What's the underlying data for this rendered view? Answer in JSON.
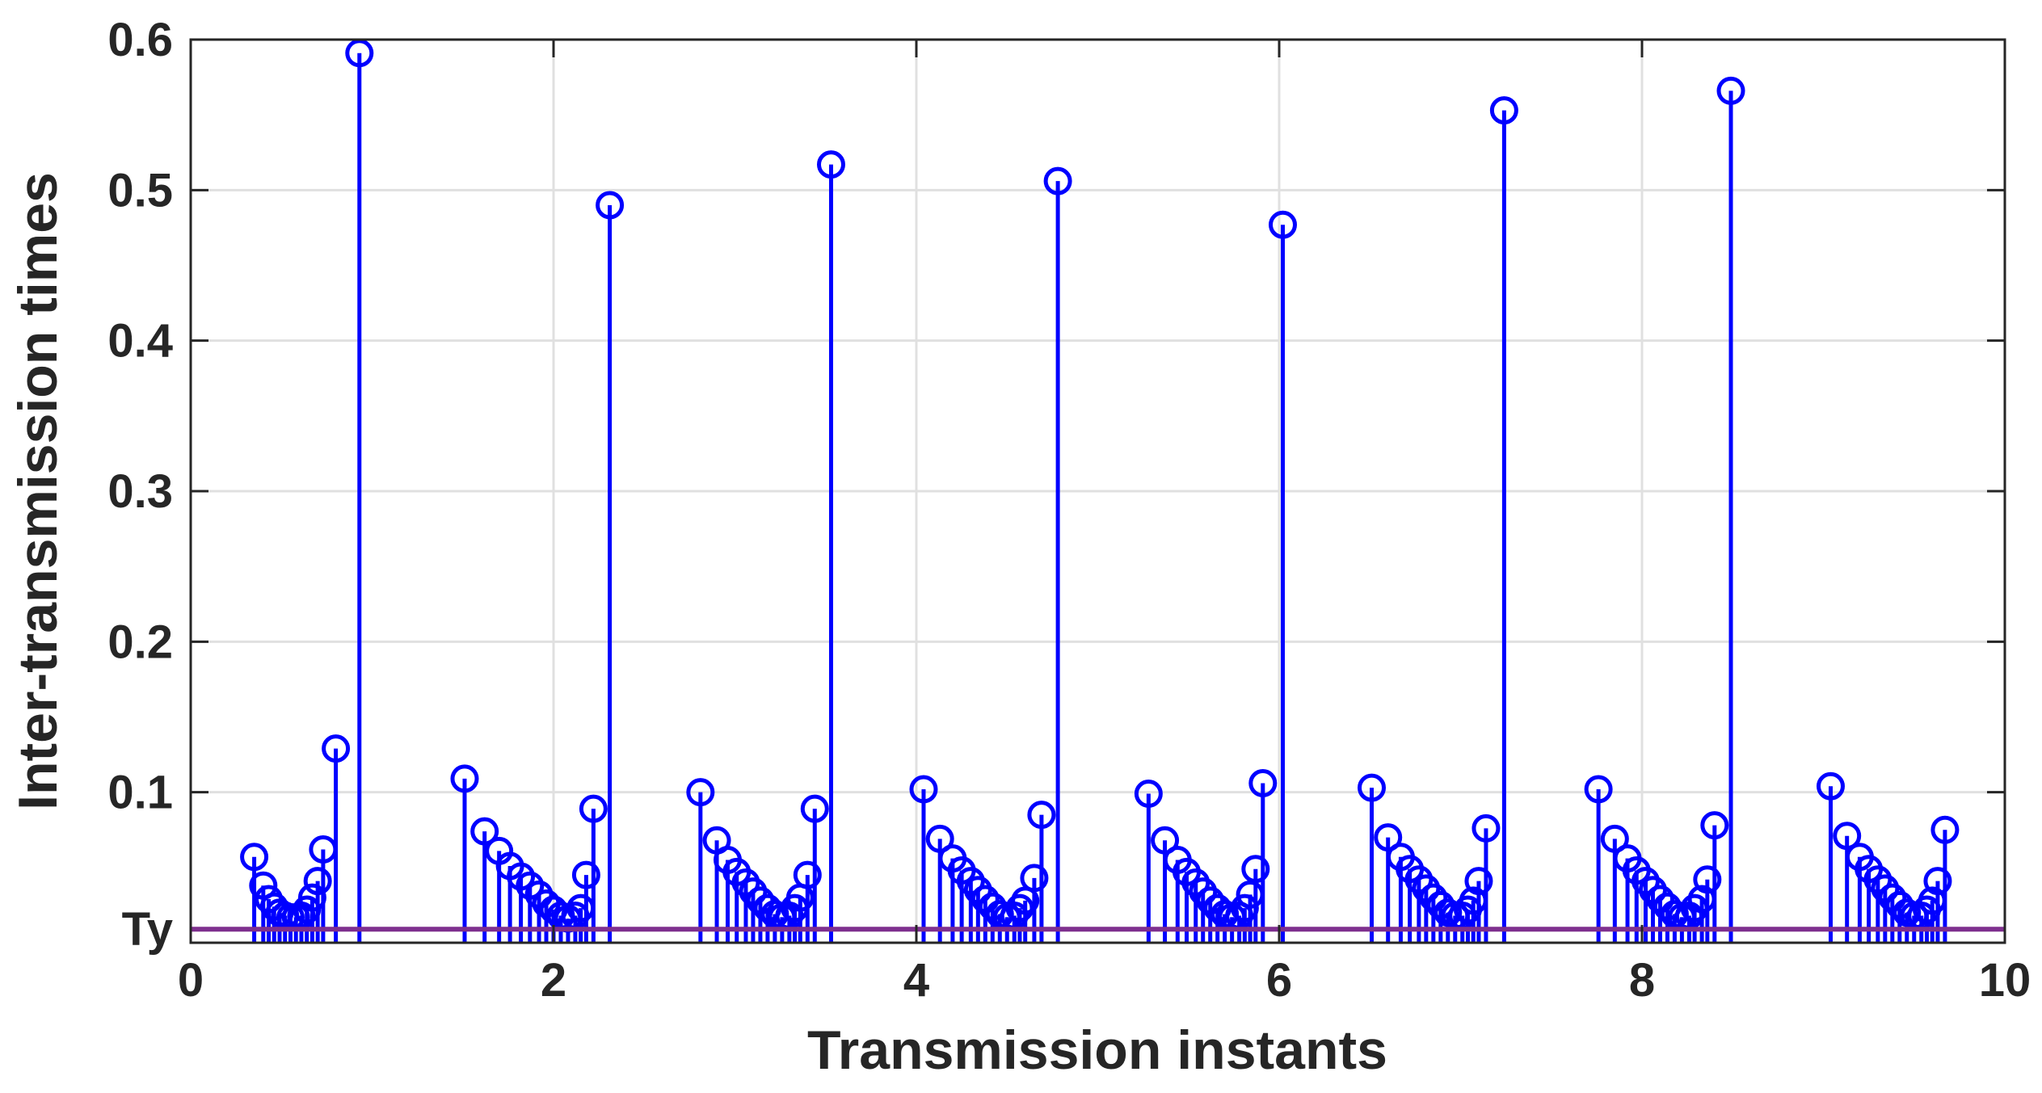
{
  "chart_data": {
    "type": "stem",
    "xlabel": "Transmission instants",
    "ylabel": "Inter-transmission times",
    "xlim": [
      0,
      10
    ],
    "ylim": [
      0,
      0.6
    ],
    "xticks": [
      0,
      2,
      4,
      6,
      8,
      10
    ],
    "xtick_labels": [
      "0",
      "2",
      "4",
      "6",
      "8",
      "10"
    ],
    "yticks": [
      0.1,
      0.2,
      0.3,
      0.4,
      0.5,
      0.6
    ],
    "ytick_labels": [
      "0.1",
      "0.2",
      "0.3",
      "0.4",
      "0.5",
      "0.6"
    ],
    "grid": true,
    "threshold": {
      "label": "Ty",
      "value": 0.009,
      "color": "#7e2f8e"
    },
    "series_color": "#0000ff",
    "points": [
      [
        0.35,
        0.057
      ],
      [
        0.4,
        0.038
      ],
      [
        0.43,
        0.029
      ],
      [
        0.46,
        0.024
      ],
      [
        0.49,
        0.02
      ],
      [
        0.52,
        0.018
      ],
      [
        0.55,
        0.017
      ],
      [
        0.58,
        0.017
      ],
      [
        0.61,
        0.018
      ],
      [
        0.64,
        0.022
      ],
      [
        0.67,
        0.03
      ],
      [
        0.7,
        0.041
      ],
      [
        0.73,
        0.062
      ],
      [
        0.8,
        0.129
      ],
      [
        0.93,
        0.591
      ],
      [
        1.51,
        0.109
      ],
      [
        1.62,
        0.074
      ],
      [
        1.7,
        0.061
      ],
      [
        1.76,
        0.051
      ],
      [
        1.82,
        0.044
      ],
      [
        1.87,
        0.038
      ],
      [
        1.92,
        0.032
      ],
      [
        1.96,
        0.026
      ],
      [
        2.0,
        0.022
      ],
      [
        2.04,
        0.018
      ],
      [
        2.08,
        0.016
      ],
      [
        2.12,
        0.018
      ],
      [
        2.15,
        0.023
      ],
      [
        2.18,
        0.045
      ],
      [
        2.22,
        0.089
      ],
      [
        2.31,
        0.49
      ],
      [
        2.81,
        0.1
      ],
      [
        2.9,
        0.068
      ],
      [
        2.96,
        0.055
      ],
      [
        3.01,
        0.047
      ],
      [
        3.06,
        0.04
      ],
      [
        3.1,
        0.034
      ],
      [
        3.14,
        0.028
      ],
      [
        3.18,
        0.023
      ],
      [
        3.22,
        0.019
      ],
      [
        3.26,
        0.017
      ],
      [
        3.3,
        0.018
      ],
      [
        3.33,
        0.023
      ],
      [
        3.36,
        0.03
      ],
      [
        3.4,
        0.045
      ],
      [
        3.44,
        0.089
      ],
      [
        3.53,
        0.517
      ],
      [
        4.04,
        0.102
      ],
      [
        4.13,
        0.069
      ],
      [
        4.2,
        0.056
      ],
      [
        4.25,
        0.048
      ],
      [
        4.3,
        0.041
      ],
      [
        4.34,
        0.035
      ],
      [
        4.38,
        0.029
      ],
      [
        4.42,
        0.024
      ],
      [
        4.46,
        0.019
      ],
      [
        4.5,
        0.017
      ],
      [
        4.54,
        0.018
      ],
      [
        4.57,
        0.023
      ],
      [
        4.6,
        0.028
      ],
      [
        4.65,
        0.043
      ],
      [
        4.69,
        0.085
      ],
      [
        4.78,
        0.506
      ],
      [
        5.28,
        0.099
      ],
      [
        5.37,
        0.068
      ],
      [
        5.44,
        0.055
      ],
      [
        5.49,
        0.047
      ],
      [
        5.54,
        0.04
      ],
      [
        5.58,
        0.034
      ],
      [
        5.62,
        0.028
      ],
      [
        5.66,
        0.023
      ],
      [
        5.7,
        0.019
      ],
      [
        5.74,
        0.017
      ],
      [
        5.78,
        0.018
      ],
      [
        5.81,
        0.023
      ],
      [
        5.84,
        0.032
      ],
      [
        5.87,
        0.049
      ],
      [
        5.91,
        0.106
      ],
      [
        6.02,
        0.477
      ],
      [
        6.51,
        0.103
      ],
      [
        6.6,
        0.07
      ],
      [
        6.67,
        0.057
      ],
      [
        6.72,
        0.049
      ],
      [
        6.77,
        0.042
      ],
      [
        6.81,
        0.036
      ],
      [
        6.85,
        0.03
      ],
      [
        6.89,
        0.025
      ],
      [
        6.93,
        0.02
      ],
      [
        6.97,
        0.018
      ],
      [
        7.01,
        0.018
      ],
      [
        7.04,
        0.022
      ],
      [
        7.07,
        0.028
      ],
      [
        7.1,
        0.041
      ],
      [
        7.14,
        0.076
      ],
      [
        7.24,
        0.553
      ],
      [
        7.76,
        0.102
      ],
      [
        7.85,
        0.069
      ],
      [
        7.92,
        0.056
      ],
      [
        7.97,
        0.048
      ],
      [
        8.02,
        0.041
      ],
      [
        8.06,
        0.035
      ],
      [
        8.1,
        0.029
      ],
      [
        8.14,
        0.024
      ],
      [
        8.18,
        0.019
      ],
      [
        8.22,
        0.017
      ],
      [
        8.26,
        0.018
      ],
      [
        8.29,
        0.023
      ],
      [
        8.33,
        0.029
      ],
      [
        8.36,
        0.042
      ],
      [
        8.4,
        0.078
      ],
      [
        8.49,
        0.566
      ],
      [
        9.04,
        0.104
      ],
      [
        9.13,
        0.071
      ],
      [
        9.2,
        0.057
      ],
      [
        9.25,
        0.049
      ],
      [
        9.3,
        0.042
      ],
      [
        9.34,
        0.036
      ],
      [
        9.38,
        0.03
      ],
      [
        9.42,
        0.025
      ],
      [
        9.46,
        0.02
      ],
      [
        9.5,
        0.018
      ],
      [
        9.54,
        0.018
      ],
      [
        9.57,
        0.022
      ],
      [
        9.6,
        0.028
      ],
      [
        9.63,
        0.041
      ],
      [
        9.67,
        0.075
      ]
    ]
  }
}
